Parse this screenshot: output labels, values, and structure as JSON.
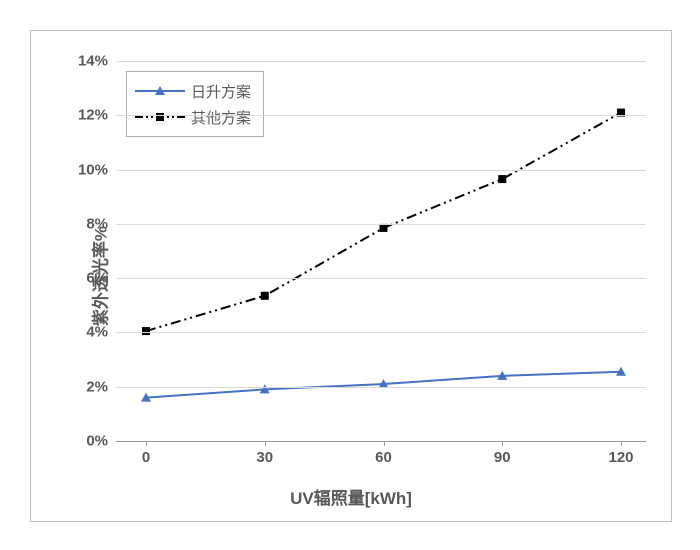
{
  "chart": {
    "type": "line",
    "xlabel": "UV辐照量[kWh]",
    "ylabel": "紫外透光率%",
    "xlim": [
      0,
      120
    ],
    "ylim": [
      0,
      14
    ],
    "x_ticks": [
      0,
      30,
      60,
      90,
      120
    ],
    "y_ticks": [
      0,
      2,
      4,
      6,
      8,
      10,
      12,
      14
    ],
    "y_tick_labels": [
      "0%",
      "2%",
      "4%",
      "6%",
      "8%",
      "10%",
      "12%",
      "14%"
    ],
    "x_tick_labels": [
      "0",
      "30",
      "60",
      "90",
      "120"
    ],
    "grid_color": "#d9d9d9",
    "axis_color": "#999999",
    "background_color": "#ffffff",
    "label_fontsize": 17,
    "tick_fontsize": 15,
    "series": [
      {
        "name": "日升方案",
        "x": [
          0,
          30,
          60,
          90,
          120
        ],
        "y": [
          1.6,
          1.9,
          2.1,
          2.4,
          2.55
        ],
        "color": "#4472c4",
        "line_width": 2,
        "dash": "solid",
        "marker": "triangle",
        "marker_size": 10,
        "marker_fill": "#4472c4"
      },
      {
        "name": "其他方案",
        "x": [
          0,
          30,
          60,
          90,
          120
        ],
        "y": [
          4.05,
          5.35,
          7.85,
          9.65,
          12.1
        ],
        "color": "#000000",
        "line_width": 2,
        "dash": "dash-dot-dot",
        "marker": "square",
        "marker_size": 8,
        "marker_fill": "#000000"
      }
    ],
    "legend": {
      "position": "top-left",
      "border_color": "#b0b0b0",
      "background": "#ffffff"
    }
  }
}
